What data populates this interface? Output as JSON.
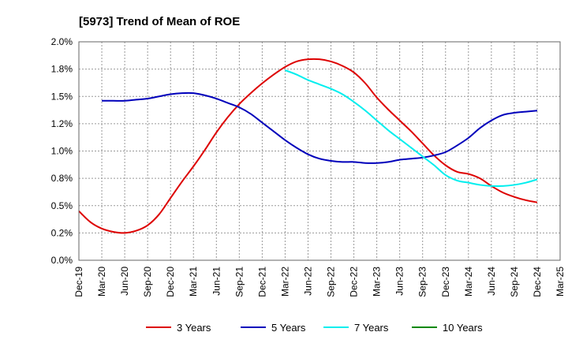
{
  "chart_data": {
    "type": "line",
    "title": "[5973]  Trend of Mean of ROE",
    "xlabel": "",
    "ylabel": "",
    "ylim": [
      0,
      0.02
    ],
    "ytick_values": [
      0,
      0.0025,
      0.005,
      0.0075,
      0.01,
      0.0125,
      0.015,
      0.0175,
      0.02
    ],
    "ytick_labels": [
      "0.0%",
      "0.2%",
      "0.5%",
      "0.8%",
      "1.0%",
      "1.2%",
      "1.5%",
      "1.8%",
      "2.0%"
    ],
    "x_ticks": [
      "Dec-19",
      "Mar-20",
      "Jun-20",
      "Sep-20",
      "Dec-20",
      "Mar-21",
      "Jun-21",
      "Sep-21",
      "Dec-21",
      "Mar-22",
      "Jun-22",
      "Sep-22",
      "Dec-22",
      "Mar-23",
      "Jun-23",
      "Sep-23",
      "Dec-23",
      "Mar-24",
      "Jun-24",
      "Sep-24",
      "Dec-24",
      "Mar-25"
    ],
    "grid": true,
    "legend_position": "bottom",
    "series": [
      {
        "name": "3 Years",
        "color": "#dd0000",
        "points": [
          [
            0,
            0.0045
          ],
          [
            0.5,
            0.0035
          ],
          [
            1,
            0.0029
          ],
          [
            1.5,
            0.0026
          ],
          [
            2,
            0.0025
          ],
          [
            2.5,
            0.0027
          ],
          [
            3,
            0.0032
          ],
          [
            3.5,
            0.0042
          ],
          [
            4,
            0.0057
          ],
          [
            4.5,
            0.0072
          ],
          [
            5,
            0.0086
          ],
          [
            5.5,
            0.0101
          ],
          [
            6,
            0.0117
          ],
          [
            6.5,
            0.0131
          ],
          [
            7,
            0.0143
          ],
          [
            7.5,
            0.0153
          ],
          [
            8,
            0.0162
          ],
          [
            8.5,
            0.017
          ],
          [
            9,
            0.0177
          ],
          [
            9.5,
            0.0182
          ],
          [
            10,
            0.0184
          ],
          [
            10.5,
            0.0184
          ],
          [
            11,
            0.0182
          ],
          [
            11.5,
            0.0178
          ],
          [
            12,
            0.0172
          ],
          [
            12.5,
            0.0162
          ],
          [
            13,
            0.0149
          ],
          [
            13.5,
            0.0138
          ],
          [
            14,
            0.0128
          ],
          [
            14.5,
            0.0118
          ],
          [
            15,
            0.0107
          ],
          [
            15.5,
            0.0096
          ],
          [
            16,
            0.0087
          ],
          [
            16.5,
            0.0081
          ],
          [
            17,
            0.0079
          ],
          [
            17.5,
            0.0075
          ],
          [
            18,
            0.0068
          ],
          [
            18.5,
            0.0062
          ],
          [
            19,
            0.0058
          ],
          [
            19.5,
            0.0055
          ],
          [
            20,
            0.0053
          ]
        ]
      },
      {
        "name": "5 Years",
        "color": "#0000bb",
        "points": [
          [
            1,
            0.0146
          ],
          [
            1.5,
            0.0146
          ],
          [
            2,
            0.0146
          ],
          [
            2.5,
            0.0147
          ],
          [
            3,
            0.0148
          ],
          [
            3.5,
            0.015
          ],
          [
            4,
            0.0152
          ],
          [
            4.5,
            0.0153
          ],
          [
            5,
            0.0153
          ],
          [
            5.5,
            0.0151
          ],
          [
            6,
            0.0148
          ],
          [
            6.5,
            0.0144
          ],
          [
            7,
            0.014
          ],
          [
            7.5,
            0.0134
          ],
          [
            8,
            0.0126
          ],
          [
            8.5,
            0.0118
          ],
          [
            9,
            0.011
          ],
          [
            9.5,
            0.0103
          ],
          [
            10,
            0.0097
          ],
          [
            10.5,
            0.0093
          ],
          [
            11,
            0.0091
          ],
          [
            11.5,
            0.009
          ],
          [
            12,
            0.009
          ],
          [
            12.5,
            0.0089
          ],
          [
            13,
            0.0089
          ],
          [
            13.5,
            0.009
          ],
          [
            14,
            0.0092
          ],
          [
            14.5,
            0.0093
          ],
          [
            15,
            0.0094
          ],
          [
            15.5,
            0.0096
          ],
          [
            16,
            0.0099
          ],
          [
            16.5,
            0.0105
          ],
          [
            17,
            0.0112
          ],
          [
            17.5,
            0.0121
          ],
          [
            18,
            0.0128
          ],
          [
            18.5,
            0.0133
          ],
          [
            19,
            0.0135
          ],
          [
            19.5,
            0.0136
          ],
          [
            20,
            0.0137
          ]
        ]
      },
      {
        "name": "7 Years",
        "color": "#00eeee",
        "points": [
          [
            9,
            0.0174
          ],
          [
            9.5,
            0.017
          ],
          [
            10,
            0.0165
          ],
          [
            10.5,
            0.0161
          ],
          [
            11,
            0.0157
          ],
          [
            11.5,
            0.0152
          ],
          [
            12,
            0.0145
          ],
          [
            12.5,
            0.0137
          ],
          [
            13,
            0.0128
          ],
          [
            13.5,
            0.0119
          ],
          [
            14,
            0.0111
          ],
          [
            14.5,
            0.0103
          ],
          [
            15,
            0.0095
          ],
          [
            15.5,
            0.0087
          ],
          [
            16,
            0.0078
          ],
          [
            16.5,
            0.0073
          ],
          [
            17,
            0.0071
          ],
          [
            17.5,
            0.0069
          ],
          [
            18,
            0.0068
          ],
          [
            18.5,
            0.0068
          ],
          [
            19,
            0.0069
          ],
          [
            19.5,
            0.0071
          ],
          [
            20,
            0.0074
          ]
        ]
      },
      {
        "name": "10 Years",
        "color": "#008800",
        "points": []
      }
    ]
  }
}
